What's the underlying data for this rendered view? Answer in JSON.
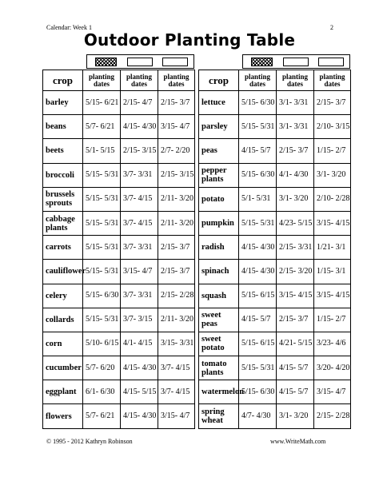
{
  "header": {
    "left": "Calendar: Week 1",
    "page": "2"
  },
  "title": "Outdoor Planting Table",
  "columns": {
    "crop": "crop",
    "planting_dates": "planting dates"
  },
  "left_table": [
    {
      "crop": "barley",
      "d1": "5/15- 6/21",
      "d2": "2/15- 4/7",
      "d3": "2/15- 3/7"
    },
    {
      "crop": "beans",
      "d1": "5/7- 6/21",
      "d2": "4/15- 4/30",
      "d3": "3/15- 4/7"
    },
    {
      "crop": "beets",
      "d1": "5/1- 5/15",
      "d2": "2/15- 3/15",
      "d3": "2/7- 2/20"
    },
    {
      "crop": "broccoli",
      "d1": "5/15- 5/31",
      "d2": "3/7- 3/31",
      "d3": "2/15- 3/15"
    },
    {
      "crop": "brussels sprouts",
      "d1": "5/15- 5/31",
      "d2": "3/7- 4/15",
      "d3": "2/11- 3/20"
    },
    {
      "crop": "cabbage plants",
      "d1": "5/15- 5/31",
      "d2": "3/7- 4/15",
      "d3": "2/11- 3/20"
    },
    {
      "crop": "carrots",
      "d1": "5/15- 5/31",
      "d2": "3/7- 3/31",
      "d3": "2/15- 3/7"
    },
    {
      "crop": "cauliflower",
      "d1": "5/15- 5/31",
      "d2": "3/15- 4/7",
      "d3": "2/15- 3/7"
    },
    {
      "crop": "celery",
      "d1": "5/15- 6/30",
      "d2": "3/7- 3/31",
      "d3": "2/15- 2/28"
    },
    {
      "crop": "collards",
      "d1": "5/15- 5/31",
      "d2": "3/7- 3/15",
      "d3": "2/11- 3/20"
    },
    {
      "crop": "corn",
      "d1": "5/10- 6/15",
      "d2": "4/1- 4/15",
      "d3": "3/15- 3/31"
    },
    {
      "crop": "cucumber",
      "d1": "5/7- 6/20",
      "d2": "4/15- 4/30",
      "d3": "3/7- 4/15"
    },
    {
      "crop": "eggplant",
      "d1": "6/1- 6/30",
      "d2": "4/15- 5/15",
      "d3": "3/7- 4/15"
    },
    {
      "crop": "flowers",
      "d1": "5/7- 6/21",
      "d2": "4/15- 4/30",
      "d3": "3/15- 4/7"
    }
  ],
  "right_table": [
    {
      "crop": "lettuce",
      "d1": "5/15- 6/30",
      "d2": "3/1- 3/31",
      "d3": "2/15- 3/7"
    },
    {
      "crop": "parsley",
      "d1": "5/15- 5/31",
      "d2": "3/1- 3/31",
      "d3": "2/10- 3/15"
    },
    {
      "crop": "peas",
      "d1": "4/15- 5/7",
      "d2": "2/15- 3/7",
      "d3": "1/15- 2/7"
    },
    {
      "crop": "pepper plants",
      "d1": "5/15- 6/30",
      "d2": "4/1- 4/30",
      "d3": "3/1- 3/20"
    },
    {
      "crop": "potato",
      "d1": "5/1- 5/31",
      "d2": "3/1- 3/20",
      "d3": "2/10- 2/28"
    },
    {
      "crop": "pumpkin",
      "d1": "5/15- 5/31",
      "d2": "4/23- 5/15",
      "d3": "3/15- 4/15"
    },
    {
      "crop": "radish",
      "d1": "4/15- 4/30",
      "d2": "2/15- 3/31",
      "d3": "1/21- 3/1"
    },
    {
      "crop": "spinach",
      "d1": "4/15- 4/30",
      "d2": "2/15- 3/20",
      "d3": "1/15- 3/1"
    },
    {
      "crop": "squash",
      "d1": "5/15- 6/15",
      "d2": "3/15- 4/15",
      "d3": "3/15- 4/15"
    },
    {
      "crop": "sweet peas",
      "d1": "4/15- 5/7",
      "d2": "2/15- 3/7",
      "d3": "1/15- 2/7"
    },
    {
      "crop": "sweet potato",
      "d1": "5/15- 6/15",
      "d2": "4/21- 5/15",
      "d3": "3/23- 4/6"
    },
    {
      "crop": "tomato plants",
      "d1": "5/15- 5/31",
      "d2": "4/15- 5/7",
      "d3": "3/20- 4/20"
    },
    {
      "crop": "watermelon",
      "d1": "5/15- 6/30",
      "d2": "4/15- 5/7",
      "d3": "3/15- 4/7"
    },
    {
      "crop": "spring wheat",
      "d1": "4/7- 4/30",
      "d2": "3/1- 3/20",
      "d3": "2/15- 2/28"
    }
  ],
  "footer": {
    "copyright": "© 1995 - 2012 Kathryn Robinson",
    "site": "www.WriteMath.com"
  }
}
